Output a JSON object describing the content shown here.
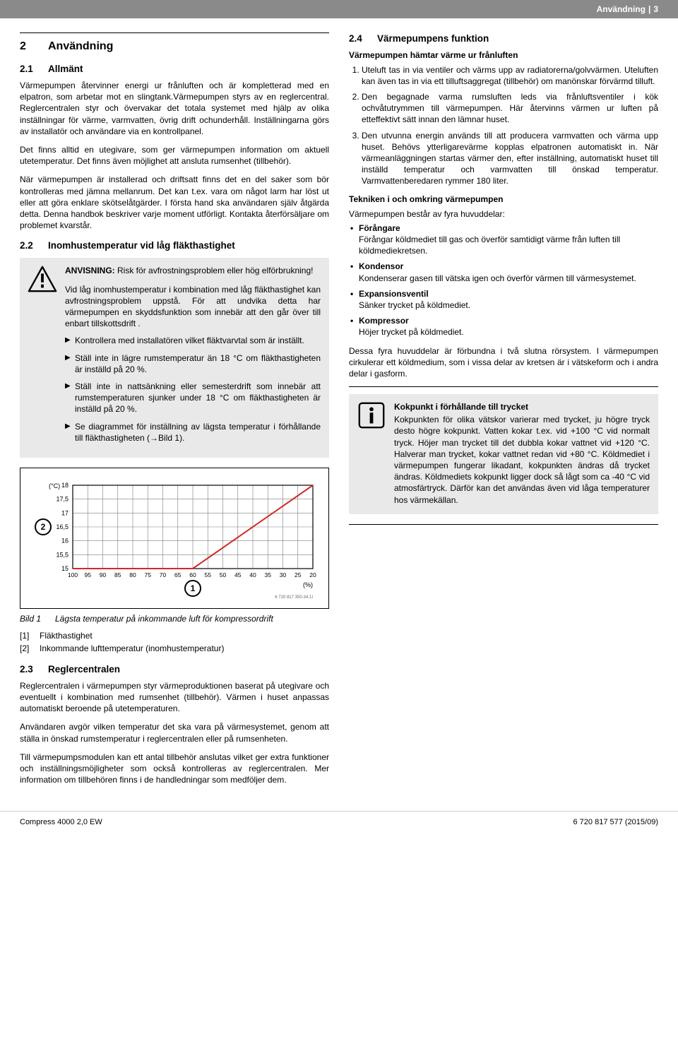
{
  "header": {
    "section": "Användning",
    "page": "3"
  },
  "left": {
    "h2": {
      "num": "2",
      "title": "Användning"
    },
    "s21": {
      "num": "2.1",
      "title": "Allmänt"
    },
    "p1": "Värmepumpen återvinner energi ur frånluften och är kompletterad med en elpatron, som arbetar mot en slingtank.Värmepumpen styrs av en reglercentral. Reglercentralen styr och övervakar det totala systemet med hjälp av olika inställningar för värme, varmvatten, övrig drift ochunderhåll. Inställningarna görs av installatör och användare via en kontrollpanel.",
    "p2": "Det finns alltid en utegivare, som ger värmepumpen information om aktuell utetemperatur. Det finns även möjlighet att ansluta rumsenhet (tillbehör).",
    "p3": "När värmepumpen är installerad och driftsatt finns det en del saker som bör kontrolleras med jämna mellanrum. Det kan t.ex. vara om något larm har löst ut eller att göra enklare skötselåtgärder. I första hand ska användaren själv åtgärda detta. Denna handbok beskriver varje moment utförligt. Kontakta återförsäljare om problemet kvarstår.",
    "s22": {
      "num": "2.2",
      "title": "Inomhustemperatur vid låg fläkthastighet"
    },
    "warn": {
      "lead": "ANVISNING:",
      "t1": "Risk för avfrostningsproblem eller hög elförbrukning!",
      "t2": "Vid låg inomhustemperatur i kombination med låg fläkthastighet kan avfrostningsproblem uppstå. För att undvika detta har värmepumpen en skyddsfunktion som innebär att den går över till enbart tillskottsdrift .",
      "bul1": "Kontrollera med installatören vilket fläktvarvtal som är inställt.",
      "bul2": "Ställ inte in lägre rumstemperatur än 18 °C om fläkthastigheten är inställd på 20 %.",
      "bul3": "Ställ inte in nattsänkning eller semesterdrift som innebär att rumstemperaturen sjunker under 18 °C om fläkthastigheten är inställd på 20 %.",
      "bul4": "Se diagrammet för inställning av lägsta temperatur i förhållande till fläkthastigheten (→Bild 1)."
    },
    "chart": {
      "y_unit": "(°C)",
      "x_unit": "(%)",
      "y_ticks": [
        "18",
        "17,5",
        "17",
        "16,5",
        "16",
        "15,5",
        "15"
      ],
      "x_ticks": [
        "100",
        "95",
        "90",
        "85",
        "80",
        "75",
        "70",
        "65",
        "60",
        "55",
        "50",
        "45",
        "40",
        "35",
        "30",
        "25",
        "20"
      ],
      "line_color": "#cf2a27",
      "grid_color": "#7d7d7d",
      "bg": "#ffffff",
      "axis_num_1": "1",
      "axis_num_2": "2",
      "docnum": "6 720 817 350-34.1I"
    },
    "caption": {
      "lbl": "Bild 1",
      "text": "Lägsta temperatur på inkommande luft för kompressordrift"
    },
    "leg1": {
      "br": "[1]",
      "t": "Fläkthastighet"
    },
    "leg2": {
      "br": "[2]",
      "t": "Inkommande lufttemperatur (inomhustemperatur)"
    },
    "s23": {
      "num": "2.3",
      "title": "Reglercentralen"
    },
    "p23a": "Reglercentralen i värmepumpen styr värmeproduktionen baserat på utegivare och eventuellt i kombination med rumsenhet (tillbehör). Värmen i huset anpassas automatiskt beroende på utetemperaturen.",
    "p23b": "Användaren avgör vilken temperatur det ska vara på värmesystemet, genom att ställa in önskad rumstemperatur i reglercentralen eller på rumsenheten.",
    "p23c": "Till värmepumpsmodulen kan ett antal tillbehör anslutas vilket ger extra funktioner och inställningsmöjligheter som också kontrolleras av reglercentralen. Mer information om tillbehören finns i de handledningar som medföljer dem."
  },
  "right": {
    "s24": {
      "num": "2.4",
      "title": "Värmepumpens funktion"
    },
    "bold1": "Värmepumpen hämtar värme ur frånluften",
    "ol1": "Uteluft tas in via ventiler och värms upp av radiatorerna/golvvärmen. Uteluften kan även tas in via ett tilluftsaggregat (tillbehör) om manönskar förvärmd tilluft.",
    "ol2": "Den begagnade varma rumsluften leds via frånluftsventiler i kök ochvåtutrymmen till värmepumpen. Här återvinns värmen ur luften på etteffektivt sätt innan den lämnar huset.",
    "ol3": "Den utvunna energin används till att producera varmvatten och värma upp huset. Behövs ytterligarevärme kopplas elpatronen automatiskt in. När värmeanläggningen startas värmer den, efter inställning, automatiskt huset till inställd temperatur och varmvatten till önskad temperatur. Varmvattenberedaren rymmer 180 liter.",
    "bold2": "Tekniken i och omkring värmepumpen",
    "pcomp": "Värmepumpen består av fyra huvuddelar:",
    "def1t": "Förångare",
    "def1d": "Förångar köldmediet till gas och överför samtidigt värme från luften till köldmediekretsen.",
    "def2t": "Kondensor",
    "def2d": "Kondenserar gasen till vätska igen och överför värmen till värmesystemet.",
    "def3t": "Expansionsventil",
    "def3d": "Sänker trycket på köldmediet.",
    "def4t": "Kompressor",
    "def4d": "Höjer trycket på köldmediet.",
    "pclosed": "Dessa fyra huvuddelar är förbundna i två slutna rörsystem. I värmepumpen cirkulerar ett köldmedium, som i vissa delar av kretsen är i vätskeform och i andra delar i gasform.",
    "info_title": "Kokpunkt i förhållande till trycket",
    "info_body": "Kokpunkten för olika vätskor varierar med trycket, ju högre tryck desto högre kokpunkt. Vatten kokar t.ex. vid +100 °C vid normalt tryck. Höjer man trycket till det dubbla kokar vattnet vid +120 °C. Halverar man trycket, kokar vattnet redan vid +80 °C. Köldmediet i värmepumpen fungerar likadant, kokpunkten ändras då trycket ändras. Köldmediets kokpunkt ligger dock så lågt som ca -40 °C vid atmosfärtryck. Därför kan det användas även vid låga temperaturer hos värmekällan."
  },
  "footer": {
    "left": "Compress 4000 2,0 EW",
    "right": "6 720 817 577 (2015/09)"
  }
}
